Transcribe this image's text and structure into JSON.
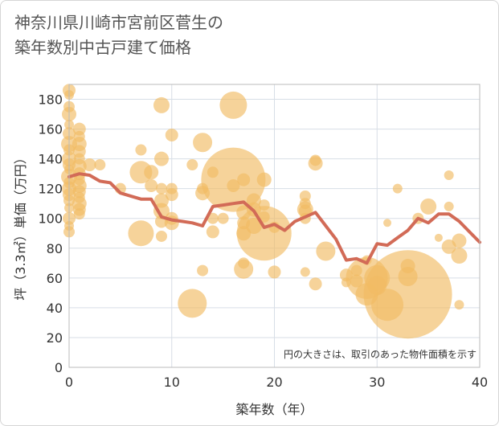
{
  "title_lines": [
    "神奈川県川崎市宮前区菅生の",
    "築年数別中古戸建て価格"
  ],
  "chart_data": {
    "type": "scatter",
    "xlabel": "築年数（年）",
    "ylabel": "坪（3.3㎡）単価（万円）",
    "xlim": [
      0,
      40
    ],
    "ylim": [
      0,
      190
    ],
    "x_ticks": [
      0,
      10,
      20,
      30,
      40
    ],
    "y_ticks": [
      0,
      20,
      40,
      60,
      80,
      100,
      120,
      140,
      160,
      180
    ],
    "grid": true,
    "annotation": "円の大きさは、取引のあった物件面積を示す",
    "colors": {
      "bubble": "#f1bc64",
      "line": "#d26b57",
      "grid": "#d7dee6",
      "plot_border": "#bbbbbb"
    },
    "bubbles": [
      [
        0,
        186,
        8
      ],
      [
        0,
        183,
        6
      ],
      [
        0,
        175,
        7
      ],
      [
        0,
        170,
        9
      ],
      [
        0,
        163,
        6
      ],
      [
        0,
        157,
        8
      ],
      [
        0,
        150,
        10
      ],
      [
        0,
        146,
        7
      ],
      [
        0,
        140,
        9
      ],
      [
        0,
        136,
        8
      ],
      [
        0,
        133,
        6
      ],
      [
        0,
        128,
        10
      ],
      [
        0,
        124,
        7
      ],
      [
        0,
        120,
        9
      ],
      [
        0,
        116,
        8
      ],
      [
        0,
        112,
        7
      ],
      [
        0,
        107,
        6
      ],
      [
        0,
        100,
        8
      ],
      [
        0,
        95,
        6
      ],
      [
        0,
        91,
        7
      ],
      [
        1,
        160,
        8
      ],
      [
        1,
        155,
        7
      ],
      [
        1,
        150,
        9
      ],
      [
        1,
        145,
        8
      ],
      [
        1,
        140,
        7
      ],
      [
        1,
        135,
        9
      ],
      [
        1,
        130,
        8
      ],
      [
        1,
        126,
        7
      ],
      [
        1,
        122,
        9
      ],
      [
        1,
        118,
        8
      ],
      [
        1,
        114,
        7
      ],
      [
        1,
        110,
        9
      ],
      [
        1,
        106,
        8
      ],
      [
        1,
        103,
        7
      ],
      [
        2,
        136,
        8
      ],
      [
        3,
        136,
        7
      ],
      [
        5,
        120,
        7
      ],
      [
        7,
        146,
        7
      ],
      [
        7,
        131,
        14
      ],
      [
        7,
        90,
        16
      ],
      [
        8,
        131,
        9
      ],
      [
        8,
        122,
        8
      ],
      [
        9,
        176,
        10
      ],
      [
        9,
        140,
        9
      ],
      [
        9,
        120,
        7
      ],
      [
        9,
        112,
        9
      ],
      [
        9,
        105,
        10
      ],
      [
        9,
        98,
        8
      ],
      [
        9,
        88,
        7
      ],
      [
        10,
        156,
        8
      ],
      [
        10,
        120,
        7
      ],
      [
        10,
        116,
        8
      ],
      [
        10,
        100,
        8
      ],
      [
        10,
        97,
        9
      ],
      [
        12,
        136,
        7
      ],
      [
        12,
        43,
        18
      ],
      [
        13,
        151,
        12
      ],
      [
        13,
        120,
        7
      ],
      [
        13,
        117,
        9
      ],
      [
        13,
        65,
        7
      ],
      [
        14,
        131,
        7
      ],
      [
        14,
        100,
        7
      ],
      [
        14,
        91,
        8
      ],
      [
        15,
        100,
        7
      ],
      [
        16,
        176,
        17
      ],
      [
        16,
        126,
        40
      ],
      [
        16,
        122,
        8
      ],
      [
        17,
        126,
        8
      ],
      [
        17,
        104,
        9
      ],
      [
        17,
        97,
        8
      ],
      [
        17,
        90,
        9
      ],
      [
        17,
        70,
        7
      ],
      [
        17,
        66,
        12
      ],
      [
        18,
        112,
        9
      ],
      [
        18,
        106,
        9
      ],
      [
        18,
        95,
        10
      ],
      [
        19,
        126,
        9
      ],
      [
        19,
        109,
        7
      ],
      [
        19,
        90,
        34
      ],
      [
        19,
        101,
        7
      ],
      [
        20,
        64,
        8
      ],
      [
        20,
        94,
        7
      ],
      [
        23,
        115,
        7
      ],
      [
        23,
        110,
        7
      ],
      [
        23,
        106,
        10
      ],
      [
        23,
        105,
        8
      ],
      [
        23,
        100,
        7
      ],
      [
        23,
        64,
        6
      ],
      [
        24,
        139,
        7
      ],
      [
        24,
        137,
        9
      ],
      [
        24,
        56,
        8
      ],
      [
        25,
        78,
        12
      ],
      [
        27,
        57,
        6
      ],
      [
        27,
        62,
        8
      ],
      [
        28,
        65,
        7
      ],
      [
        28,
        58,
        8
      ],
      [
        29,
        60,
        26
      ],
      [
        29,
        72,
        6
      ],
      [
        29,
        49,
        14
      ],
      [
        30,
        60,
        16
      ],
      [
        30,
        55,
        12
      ],
      [
        31,
        42,
        20
      ],
      [
        31,
        97,
        5
      ],
      [
        32,
        120,
        6
      ],
      [
        33,
        49,
        55
      ],
      [
        33,
        61,
        12
      ],
      [
        33,
        68,
        9
      ],
      [
        34,
        100,
        7
      ],
      [
        35,
        108,
        10
      ],
      [
        36,
        87,
        5
      ],
      [
        37,
        129,
        6
      ],
      [
        37,
        108,
        6
      ],
      [
        37,
        81,
        9
      ],
      [
        38,
        85,
        9
      ],
      [
        38,
        75,
        10
      ],
      [
        38,
        42,
        6
      ]
    ],
    "line": {
      "x": [
        0,
        1,
        2,
        3,
        4,
        5,
        6,
        7,
        8,
        9,
        10,
        11,
        12,
        13,
        14,
        15,
        16,
        17,
        18,
        19,
        20,
        21,
        22,
        23,
        24,
        25,
        26,
        27,
        28,
        29,
        30,
        31,
        32,
        33,
        34,
        35,
        36,
        37,
        38,
        39,
        40
      ],
      "values": [
        128,
        130,
        129,
        125,
        124,
        117,
        115,
        113,
        113,
        101,
        99,
        98,
        97,
        95,
        108,
        109,
        110,
        111,
        105,
        94,
        96,
        92,
        98,
        101,
        104,
        95,
        86,
        72,
        73,
        70,
        83,
        82,
        87,
        92,
        100,
        97,
        103,
        103,
        98,
        91,
        84
      ]
    }
  }
}
